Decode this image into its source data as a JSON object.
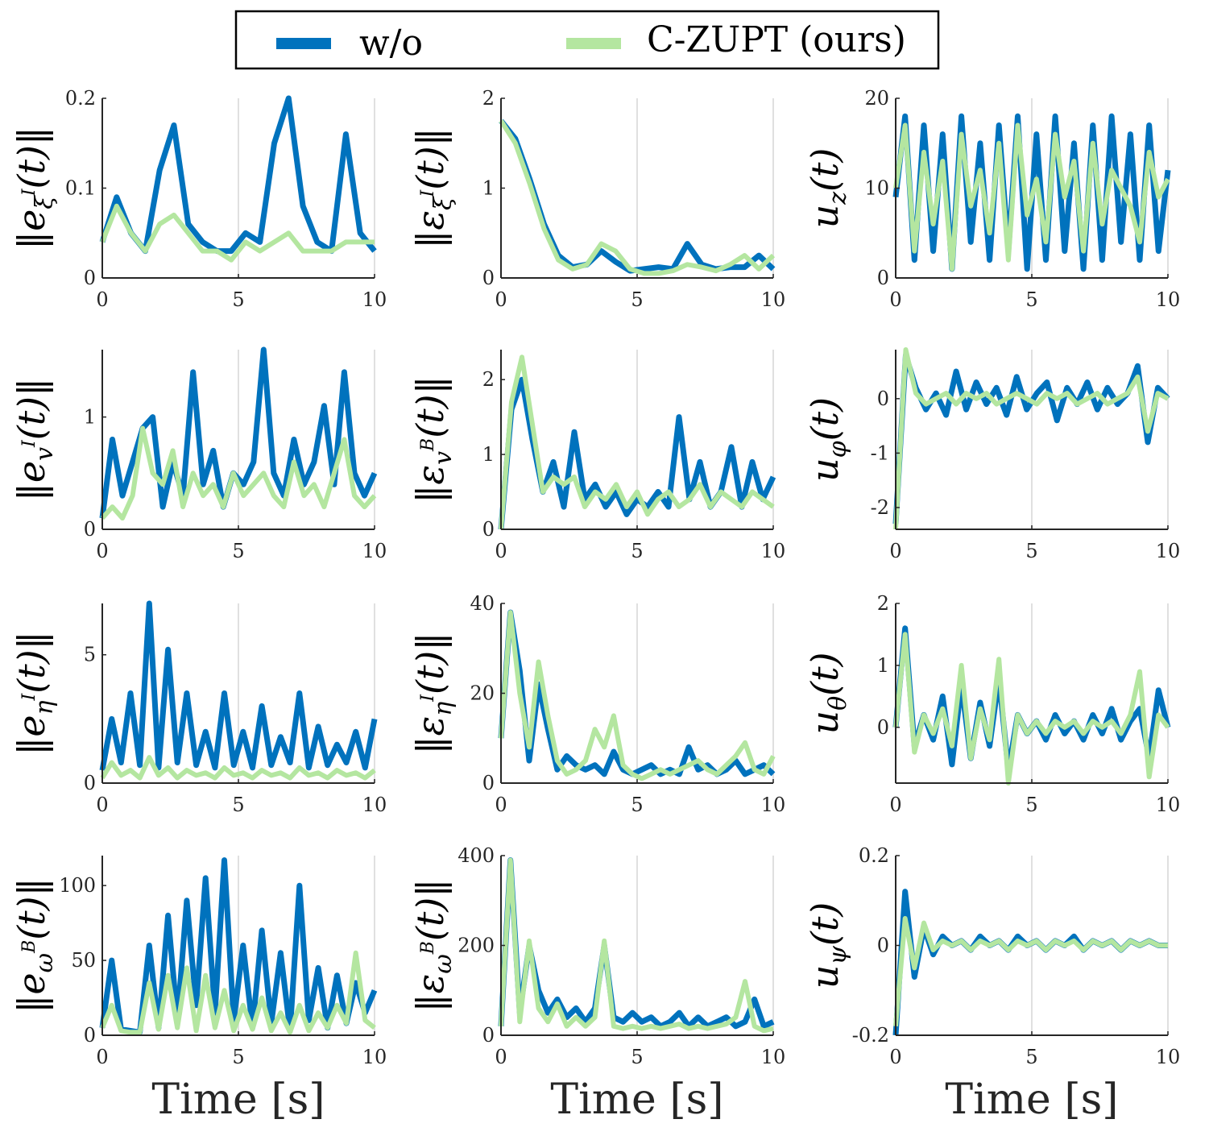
{
  "legend": {
    "entries": [
      {
        "label": "w/o",
        "color": "#0072BD"
      },
      {
        "label": "C-ZUPT (ours)",
        "color": "#B4E6A0"
      }
    ]
  },
  "chart_data": [
    {
      "type": "line",
      "ylabel": "||e_ξI(t)||",
      "xlabel": "",
      "xlim": [
        0,
        10
      ],
      "ylim": [
        0,
        0.2
      ],
      "xticks": [
        "0",
        "5",
        "10"
      ],
      "yticks": [
        "0",
        "0.1",
        "0.2"
      ],
      "grid": "vertical",
      "series": [
        {
          "name": "w/o",
          "values": [
            0.04,
            0.09,
            0.05,
            0.03,
            0.12,
            0.17,
            0.06,
            0.04,
            0.03,
            0.03,
            0.05,
            0.04,
            0.15,
            0.2,
            0.08,
            0.04,
            0.03,
            0.16,
            0.05,
            0.03
          ]
        },
        {
          "name": "C-ZUPT (ours)",
          "values": [
            0.04,
            0.08,
            0.05,
            0.03,
            0.06,
            0.07,
            0.05,
            0.03,
            0.03,
            0.02,
            0.04,
            0.03,
            0.04,
            0.05,
            0.03,
            0.03,
            0.03,
            0.04,
            0.04,
            0.04
          ]
        }
      ]
    },
    {
      "type": "line",
      "ylabel": "||ε_ξI(t)||",
      "xlabel": "",
      "xlim": [
        0,
        10
      ],
      "ylim": [
        0,
        2
      ],
      "xticks": [
        "0",
        "5",
        "10"
      ],
      "yticks": [
        "0",
        "1",
        "2"
      ],
      "grid": "vertical",
      "series": [
        {
          "name": "w/o",
          "values": [
            1.75,
            1.55,
            1.1,
            0.6,
            0.25,
            0.12,
            0.15,
            0.3,
            0.18,
            0.08,
            0.1,
            0.12,
            0.1,
            0.38,
            0.15,
            0.1,
            0.12,
            0.12,
            0.25,
            0.1
          ]
        },
        {
          "name": "C-ZUPT (ours)",
          "values": [
            1.75,
            1.5,
            1.05,
            0.55,
            0.2,
            0.1,
            0.15,
            0.38,
            0.3,
            0.1,
            0.05,
            0.05,
            0.08,
            0.15,
            0.12,
            0.08,
            0.15,
            0.25,
            0.1,
            0.25
          ]
        }
      ]
    },
    {
      "type": "line",
      "ylabel": "u_z(t)",
      "xlabel": "",
      "xlim": [
        0,
        10
      ],
      "ylim": [
        0,
        20
      ],
      "xticks": [
        "0",
        "5",
        "10"
      ],
      "yticks": [
        "0",
        "10",
        "20"
      ],
      "grid": "vertical",
      "series": [
        {
          "name": "w/o",
          "values": [
            9,
            18,
            2,
            17,
            3,
            16,
            1,
            18,
            4,
            15,
            2,
            17,
            3,
            18,
            1,
            16,
            2,
            18,
            3,
            15,
            1,
            17,
            2,
            18,
            4,
            16,
            2,
            17,
            3,
            12
          ]
        },
        {
          "name": "C-ZUPT (ours)",
          "values": [
            10,
            17,
            3,
            14,
            6,
            13,
            1,
            16,
            8,
            12,
            5,
            15,
            2,
            17,
            7,
            11,
            4,
            16,
            9,
            13,
            3,
            15,
            6,
            12,
            10,
            8,
            4,
            14,
            9,
            11
          ]
        }
      ]
    },
    {
      "type": "line",
      "ylabel": "||e_vI(t)||",
      "xlabel": "",
      "xlim": [
        0,
        10
      ],
      "ylim": [
        0,
        1.6
      ],
      "xticks": [
        "0",
        "5",
        "10"
      ],
      "yticks": [
        "0",
        "1"
      ],
      "grid": "vertical",
      "series": [
        {
          "name": "w/o",
          "values": [
            0.1,
            0.8,
            0.3,
            0.6,
            0.9,
            1.0,
            0.2,
            0.6,
            0.3,
            1.4,
            0.4,
            0.7,
            0.2,
            0.5,
            0.4,
            0.6,
            1.6,
            0.5,
            0.3,
            0.8,
            0.4,
            0.6,
            1.1,
            0.4,
            1.4,
            0.5,
            0.3,
            0.5
          ]
        },
        {
          "name": "C-ZUPT (ours)",
          "values": [
            0.1,
            0.2,
            0.1,
            0.3,
            0.9,
            0.5,
            0.4,
            0.7,
            0.2,
            0.5,
            0.3,
            0.4,
            0.2,
            0.5,
            0.3,
            0.4,
            0.5,
            0.3,
            0.2,
            0.6,
            0.3,
            0.4,
            0.2,
            0.5,
            0.8,
            0.3,
            0.2,
            0.3
          ]
        }
      ]
    },
    {
      "type": "line",
      "ylabel": "||ε_vB(t)||",
      "xlabel": "",
      "xlim": [
        0,
        10
      ],
      "ylim": [
        0,
        2.4
      ],
      "xticks": [
        "0",
        "5",
        "10"
      ],
      "yticks": [
        "0",
        "1",
        "2"
      ],
      "grid": "vertical",
      "series": [
        {
          "name": "w/o",
          "values": [
            0.0,
            1.6,
            2.0,
            1.2,
            0.5,
            0.9,
            0.3,
            1.3,
            0.4,
            0.6,
            0.3,
            0.5,
            0.2,
            0.4,
            0.3,
            0.5,
            0.3,
            1.5,
            0.4,
            0.9,
            0.3,
            0.5,
            1.1,
            0.3,
            0.9,
            0.4,
            0.7
          ]
        },
        {
          "name": "C-ZUPT (ours)",
          "values": [
            0.0,
            1.7,
            2.3,
            1.4,
            0.5,
            0.7,
            0.6,
            0.7,
            0.3,
            0.5,
            0.4,
            0.6,
            0.3,
            0.5,
            0.2,
            0.4,
            0.5,
            0.3,
            0.4,
            0.6,
            0.3,
            0.5,
            0.4,
            0.3,
            0.5,
            0.4,
            0.3
          ]
        }
      ]
    },
    {
      "type": "line",
      "ylabel": "u_φ(t)",
      "xlabel": "",
      "xlim": [
        0,
        10
      ],
      "ylim": [
        -2.4,
        0.9
      ],
      "xticks": [
        "0",
        "5",
        "10"
      ],
      "yticks": [
        "-2",
        "-1",
        "0"
      ],
      "grid": "vertical",
      "series": [
        {
          "name": "w/o",
          "values": [
            -2.3,
            0.8,
            0.2,
            -0.2,
            0.1,
            -0.3,
            0.5,
            -0.2,
            0.3,
            -0.1,
            0.2,
            -0.3,
            0.4,
            -0.2,
            0.1,
            0.3,
            -0.4,
            0.2,
            -0.1,
            0.3,
            -0.2,
            0.2,
            -0.1,
            0.1,
            0.6,
            -0.8,
            0.2,
            0.0
          ]
        },
        {
          "name": "C-ZUPT (ours)",
          "values": [
            -2.4,
            0.9,
            0.1,
            -0.1,
            0.0,
            0.1,
            -0.1,
            0.1,
            0.0,
            0.1,
            -0.1,
            0.0,
            0.1,
            0.0,
            -0.1,
            0.1,
            0.0,
            0.1,
            -0.1,
            0.0,
            0.1,
            -0.1,
            0.0,
            0.1,
            0.4,
            -0.6,
            0.1,
            0.0
          ]
        }
      ]
    },
    {
      "type": "line",
      "ylabel": "||e_ηI(t)||",
      "xlabel": "",
      "xlim": [
        0,
        10
      ],
      "ylim": [
        0,
        7
      ],
      "xticks": [
        "0",
        "5",
        "10"
      ],
      "yticks": [
        "0",
        "5"
      ],
      "grid": "vertical",
      "series": [
        {
          "name": "w/o",
          "values": [
            0.5,
            2.5,
            0.8,
            3.5,
            0.7,
            7.0,
            0.6,
            5.2,
            0.8,
            3.5,
            0.7,
            2.0,
            0.6,
            3.5,
            0.7,
            2.0,
            0.6,
            3.0,
            0.7,
            1.8,
            0.8,
            3.5,
            0.6,
            2.2,
            0.7,
            1.5,
            0.8,
            2.0,
            0.6,
            2.5
          ]
        },
        {
          "name": "C-ZUPT (ours)",
          "values": [
            0.2,
            0.8,
            0.3,
            0.5,
            0.2,
            1.0,
            0.3,
            0.6,
            0.2,
            0.5,
            0.3,
            0.4,
            0.2,
            0.6,
            0.3,
            0.4,
            0.2,
            0.5,
            0.3,
            0.4,
            0.2,
            0.6,
            0.3,
            0.4,
            0.2,
            0.5,
            0.3,
            0.4,
            0.2,
            0.5
          ]
        }
      ]
    },
    {
      "type": "line",
      "ylabel": "||ε_ηI(t)||",
      "xlabel": "",
      "xlim": [
        0,
        10
      ],
      "ylim": [
        0,
        40
      ],
      "xticks": [
        "0",
        "5",
        "10"
      ],
      "yticks": [
        "0",
        "20",
        "40"
      ],
      "grid": "vertical",
      "series": [
        {
          "name": "w/o",
          "values": [
            10,
            38,
            25,
            5,
            22,
            12,
            3,
            6,
            4,
            3,
            4,
            2,
            7,
            3,
            2,
            3,
            4,
            2,
            3,
            2,
            8,
            3,
            4,
            2,
            3,
            5,
            2,
            3,
            4,
            2
          ]
        },
        {
          "name": "C-ZUPT (ours)",
          "values": [
            10,
            38,
            20,
            8,
            27,
            15,
            5,
            2,
            3,
            5,
            12,
            8,
            15,
            4,
            2,
            1,
            2,
            3,
            2,
            3,
            4,
            5,
            3,
            2,
            4,
            6,
            9,
            3,
            2,
            6
          ]
        }
      ]
    },
    {
      "type": "line",
      "ylabel": "u_θ(t)",
      "xlabel": "",
      "xlim": [
        0,
        10
      ],
      "ylim": [
        -0.9,
        2
      ],
      "xticks": [
        "0",
        "5",
        "10"
      ],
      "yticks": [
        "0",
        "1",
        "2"
      ],
      "grid": "vertical",
      "series": [
        {
          "name": "w/o",
          "values": [
            0.0,
            1.6,
            -0.3,
            0.2,
            -0.2,
            0.5,
            -0.6,
            0.7,
            -0.5,
            0.4,
            -0.3,
            0.8,
            -0.7,
            0.2,
            -0.1,
            0.1,
            -0.2,
            0.2,
            -0.1,
            0.1,
            -0.2,
            0.2,
            -0.1,
            0.3,
            -0.2,
            0.1,
            0.3,
            -0.5,
            0.6,
            0.0
          ]
        },
        {
          "name": "C-ZUPT (ours)",
          "values": [
            0.0,
            1.5,
            -0.4,
            0.2,
            -0.1,
            0.3,
            -0.3,
            1.0,
            -0.5,
            0.3,
            -0.2,
            1.1,
            -0.9,
            0.2,
            -0.1,
            0.1,
            -0.1,
            0.1,
            0.0,
            0.1,
            -0.1,
            0.1,
            0.0,
            0.1,
            -0.1,
            0.2,
            0.9,
            -0.8,
            0.2,
            0.0
          ]
        }
      ]
    },
    {
      "type": "line",
      "ylabel": "||e_ωB(t)||",
      "xlabel": "Time [s]",
      "xlim": [
        0,
        10
      ],
      "ylim": [
        0,
        120
      ],
      "xticks": [
        "0",
        "5",
        "10"
      ],
      "yticks": [
        "0",
        "50",
        "100"
      ],
      "grid": "vertical",
      "series": [
        {
          "name": "w/o",
          "values": [
            5,
            50,
            4,
            3,
            2,
            60,
            5,
            80,
            10,
            90,
            20,
            105,
            15,
            117,
            10,
            60,
            5,
            70,
            8,
            55,
            3,
            100,
            10,
            45,
            5,
            40,
            8,
            35,
            15,
            30
          ]
        },
        {
          "name": "C-ZUPT (ours)",
          "values": [
            5,
            20,
            3,
            2,
            2,
            35,
            4,
            40,
            5,
            45,
            3,
            40,
            5,
            30,
            3,
            20,
            4,
            25,
            3,
            15,
            2,
            20,
            3,
            15,
            5,
            20,
            8,
            55,
            10,
            5
          ]
        }
      ]
    },
    {
      "type": "line",
      "ylabel": "||ε_ωB(t)||",
      "xlabel": "Time [s]",
      "xlim": [
        0,
        10
      ],
      "ylim": [
        0,
        400
      ],
      "xticks": [
        "0",
        "5",
        "10"
      ],
      "yticks": [
        "0",
        "200",
        "400"
      ],
      "grid": "vertical",
      "series": [
        {
          "name": "w/o",
          "values": [
            20,
            390,
            50,
            200,
            100,
            50,
            80,
            40,
            60,
            30,
            60,
            200,
            40,
            30,
            50,
            30,
            40,
            20,
            30,
            50,
            20,
            40,
            20,
            30,
            40,
            20,
            30,
            80,
            20,
            30
          ]
        },
        {
          "name": "C-ZUPT (ours)",
          "values": [
            20,
            390,
            30,
            210,
            60,
            30,
            70,
            20,
            40,
            20,
            40,
            210,
            20,
            15,
            20,
            15,
            20,
            15,
            20,
            25,
            15,
            20,
            15,
            20,
            25,
            40,
            120,
            20,
            10,
            15
          ]
        }
      ]
    },
    {
      "type": "line",
      "ylabel": "u_ψ(t)",
      "xlabel": "Time [s]",
      "xlim": [
        0,
        10
      ],
      "ylim": [
        -0.2,
        0.2
      ],
      "xticks": [
        "0",
        "5",
        "10"
      ],
      "yticks": [
        "-0.2",
        "0",
        "0.2"
      ],
      "grid": "vertical",
      "series": [
        {
          "name": "w/o",
          "values": [
            -0.2,
            0.12,
            -0.07,
            0.04,
            -0.02,
            0.02,
            0.0,
            0.01,
            -0.01,
            0.02,
            0.0,
            0.01,
            -0.01,
            0.02,
            0.0,
            0.01,
            -0.01,
            0.01,
            0.0,
            0.02,
            -0.01,
            0.01,
            0.0,
            0.01,
            -0.01,
            0.01,
            0.0,
            0.01,
            0.0,
            0.0
          ]
        },
        {
          "name": "C-ZUPT (ours)",
          "values": [
            -0.18,
            0.06,
            -0.05,
            0.05,
            -0.01,
            0.01,
            0.0,
            0.01,
            -0.01,
            0.01,
            0.0,
            0.01,
            -0.01,
            0.01,
            0.0,
            0.01,
            -0.01,
            0.01,
            0.0,
            0.01,
            -0.01,
            0.01,
            0.0,
            0.01,
            -0.01,
            0.01,
            0.0,
            0.01,
            0.0,
            0.0
          ]
        }
      ]
    }
  ]
}
